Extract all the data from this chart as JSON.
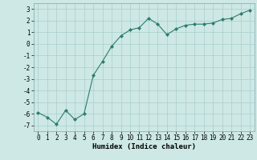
{
  "x": [
    0,
    1,
    2,
    3,
    4,
    5,
    6,
    7,
    8,
    9,
    10,
    11,
    12,
    13,
    14,
    15,
    16,
    17,
    18,
    19,
    20,
    21,
    22,
    23
  ],
  "y": [
    -5.9,
    -6.3,
    -6.9,
    -5.7,
    -6.5,
    -6.0,
    -2.7,
    -1.5,
    -0.2,
    0.7,
    1.2,
    1.4,
    2.2,
    1.7,
    0.8,
    1.3,
    1.6,
    1.7,
    1.7,
    1.8,
    2.1,
    2.2,
    2.6,
    2.9
  ],
  "xlabel": "Humidex (Indice chaleur)",
  "line_color": "#2d7d6e",
  "marker": "D",
  "marker_size": 2.0,
  "bg_color": "#cde8e5",
  "grid_color": "#aacfcc",
  "ylim": [
    -7.5,
    3.5
  ],
  "xlim": [
    -0.5,
    23.5
  ],
  "yticks": [
    -7,
    -6,
    -5,
    -4,
    -3,
    -2,
    -1,
    0,
    1,
    2,
    3
  ],
  "xticks": [
    0,
    1,
    2,
    3,
    4,
    5,
    6,
    7,
    8,
    9,
    10,
    11,
    12,
    13,
    14,
    15,
    16,
    17,
    18,
    19,
    20,
    21,
    22,
    23
  ],
  "tick_fontsize": 5.5,
  "xlabel_fontsize": 6.5
}
